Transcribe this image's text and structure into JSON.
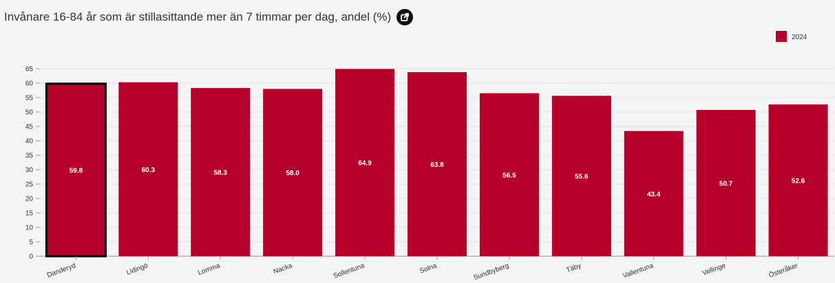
{
  "header": {
    "title": "Invånare 16-84 år som är stillasittande mer än 7 timmar per dag, andel (%)",
    "share_icon": "external-link-icon"
  },
  "colors": {
    "bar": "#b5002a",
    "highlight_stroke": "#000000",
    "grid": "#e2e2e2",
    "axis": "#999999"
  },
  "chart_data": {
    "type": "bar",
    "title": "Invånare 16-84 år som är stillasittande mer än 7 timmar per dag, andel (%)",
    "xlabel": "",
    "ylabel": "",
    "ylim": [
      0,
      65
    ],
    "yticks": [
      0,
      5,
      10,
      15,
      20,
      25,
      30,
      35,
      40,
      45,
      50,
      55,
      60,
      65
    ],
    "grid": true,
    "legend_position": "top-right",
    "categories": [
      "Danderyd",
      "Lidingö",
      "Lomma",
      "Nacka",
      "Sollentuna",
      "Solna",
      "Sundbyberg",
      "Täby",
      "Vallentuna",
      "Vellinge",
      "Österåker"
    ],
    "series": [
      {
        "name": "2024",
        "values": [
          59.8,
          60.3,
          58.3,
          58.0,
          64.9,
          63.8,
          56.5,
          55.6,
          43.4,
          50.7,
          52.6
        ],
        "value_labels": [
          "59.8",
          "60.3",
          "58.3",
          "58.0",
          "64.9",
          "63.8",
          "56.5",
          "55.6",
          "43.4",
          "50.7",
          "52.6"
        ]
      }
    ],
    "highlighted_category": "Danderyd"
  }
}
